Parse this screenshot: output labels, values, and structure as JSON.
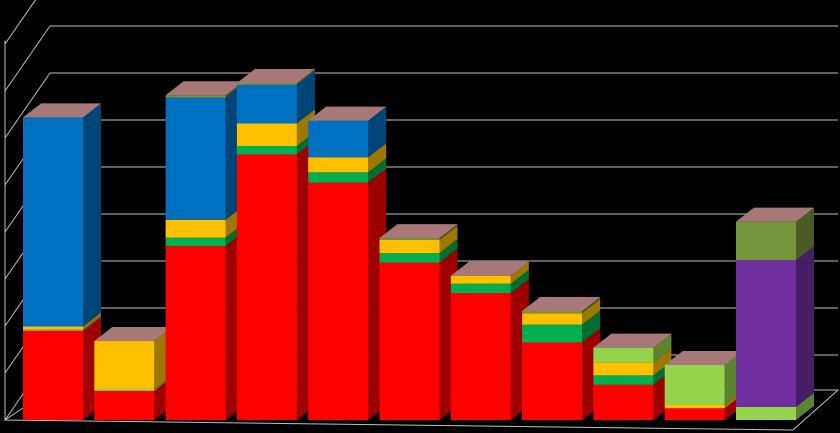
{
  "chart_data": {
    "type": "bar",
    "stacked": true,
    "three_d": true,
    "title": "",
    "xlabel": "",
    "ylabel": "",
    "ylim": [
      0,
      8.5
    ],
    "grid": true,
    "legend": "none",
    "background": "#000000",
    "categories": [
      "",
      "",
      "",
      "",
      "",
      "",
      "",
      "",
      "",
      "",
      ""
    ],
    "series": [
      {
        "color": "#ff0000",
        "values": [
          1.9,
          0.62,
          3.7,
          5.65,
          5.05,
          3.35,
          2.7,
          1.65,
          0.75,
          0.25,
          0.0
        ]
      },
      {
        "color": "#95d34c",
        "values": [
          0.03,
          0.04,
          0.0,
          0.0,
          0.0,
          0.0,
          0.0,
          0.0,
          0.0,
          0.0,
          0.28
        ]
      },
      {
        "color": "#00b050",
        "values": [
          0.0,
          0.0,
          0.18,
          0.18,
          0.22,
          0.2,
          0.2,
          0.38,
          0.2,
          0.0,
          0.0
        ]
      },
      {
        "color": "#ffc000",
        "values": [
          0.06,
          1.02,
          0.38,
          0.48,
          0.32,
          0.28,
          0.17,
          0.24,
          0.27,
          0.07,
          0.0
        ]
      },
      {
        "color": "#95d34c",
        "values": [
          0.0,
          0.0,
          0.0,
          0.0,
          0.0,
          0.0,
          0.0,
          0.0,
          0.32,
          0.85,
          0.0
        ]
      },
      {
        "color": "#0070c0",
        "values": [
          4.45,
          0.0,
          2.6,
          0.82,
          0.78,
          0.0,
          0.0,
          0.0,
          0.0,
          0.0,
          0.0
        ]
      },
      {
        "color": "#7030a0",
        "values": [
          0.0,
          0.0,
          0.0,
          0.0,
          0.0,
          0.0,
          0.0,
          0.0,
          0.0,
          0.0,
          3.12
        ]
      },
      {
        "color": "#77933c",
        "values": [
          0.0,
          0.0,
          0.05,
          0.04,
          0.0,
          0.04,
          0.0,
          0.05,
          0.0,
          0.0,
          0.82
        ]
      }
    ]
  }
}
